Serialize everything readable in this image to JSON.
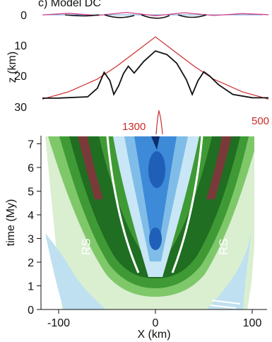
{
  "chart_data": [
    {
      "type": "line",
      "panel_title": "c) Model DC",
      "ylabel": "z (km)",
      "yticks": [
        0,
        10,
        20,
        30
      ],
      "ylim": [
        0,
        33
      ],
      "xlim": [
        -200,
        200
      ],
      "isotherm_labels": [
        "1300",
        "500"
      ],
      "series": [
        {
          "color": "#cc2a2a",
          "x": [
            -200,
            -160,
            -120,
            -90,
            -60,
            -40,
            -20,
            0,
            20,
            40,
            60,
            90,
            120,
            160,
            200
          ],
          "y": [
            31.5,
            30.3,
            27.8,
            25.2,
            21.0,
            16.8,
            12.0,
            7.2,
            12.0,
            16.8,
            21.0,
            25.2,
            27.8,
            30.3,
            31.5
          ]
        },
        {
          "color": "#111111",
          "x": [
            -200,
            -100,
            -70,
            -60,
            -53,
            -47,
            -43,
            -38,
            -33,
            -28,
            -22,
            -12,
            0,
            12,
            22,
            32,
            38,
            44,
            50,
            56,
            65,
            80,
            100,
            200
          ],
          "y": [
            27.3,
            27.2,
            26.8,
            24.0,
            18.8,
            21.5,
            26.0,
            23.2,
            19.2,
            16.8,
            19.0,
            15.2,
            11.8,
            13.0,
            15.8,
            21.2,
            26.0,
            21.5,
            18.6,
            20.0,
            22.8,
            26.0,
            27.1,
            27.2
          ]
        },
        {
          "color": "#d0408c",
          "x": [
            -200,
            -150,
            -120,
            -90,
            -60,
            -30,
            0,
            30,
            60,
            90,
            120,
            150,
            200
          ],
          "y": [
            0.1,
            -0.1,
            0.1,
            -0.5,
            0.2,
            -0.8,
            0.3,
            -0.7,
            0.2,
            -0.4,
            0.0,
            -0.2,
            0.1
          ]
        }
      ]
    },
    {
      "type": "heatmap",
      "xlabel": "X (km)",
      "ylabel": "time (My)",
      "xticks": [
        -100,
        0,
        100
      ],
      "yticks": [
        0,
        1,
        2,
        3,
        4,
        5,
        6,
        7
      ],
      "xlim": [
        -200,
        200
      ],
      "ylim": [
        0,
        7.3
      ],
      "annotations": [
        {
          "text": "RS",
          "x": -122,
          "y": 5.5
        },
        {
          "text": "RS",
          "x": 120,
          "y": 5.5
        },
        {
          "text": "RS",
          "x": -72,
          "y": 2.65
        },
        {
          "text": "RS",
          "x": 70,
          "y": 2.65
        }
      ]
    }
  ]
}
